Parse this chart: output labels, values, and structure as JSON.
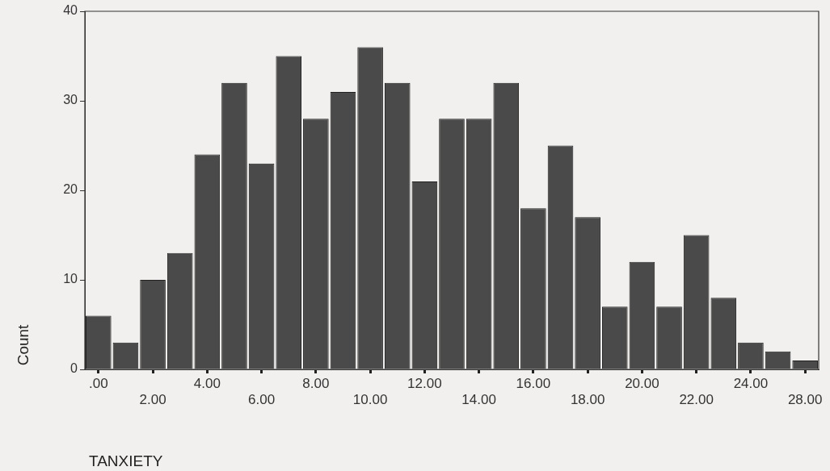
{
  "chart_data": {
    "type": "bar",
    "xlabel": "TANXIETY",
    "ylabel": "Count",
    "color": "#4a4a4a",
    "categories": [
      ".00",
      null,
      "2.00",
      null,
      "4.00",
      null,
      "6.00",
      null,
      "8.00",
      null,
      "10.00",
      null,
      "12.00",
      null,
      "14.00",
      null,
      "16.00",
      null,
      "18.00",
      null,
      "20.00",
      null,
      "22.00",
      null,
      "24.00",
      null,
      "28.00"
    ],
    "values": [
      6,
      3,
      10,
      13,
      24,
      32,
      23,
      35,
      28,
      31,
      36,
      32,
      21,
      28,
      28,
      32,
      18,
      25,
      17,
      7,
      12,
      7,
      15,
      8,
      3,
      2,
      1
    ],
    "ylim": [
      0,
      40
    ],
    "yticks": [
      0,
      10,
      20,
      30,
      40
    ]
  }
}
